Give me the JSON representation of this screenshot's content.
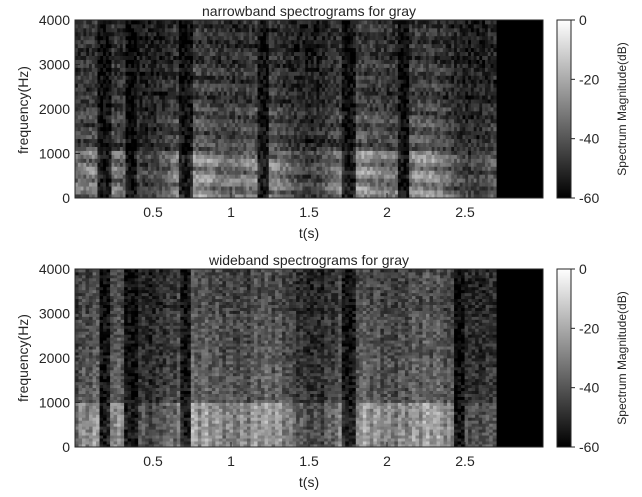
{
  "colors": {
    "axis": "#262626",
    "background": "#ffffff",
    "colormap": "gray"
  },
  "chart_data": [
    {
      "type": "heatmap",
      "name": "narrowband",
      "title": "narrowband spectrograms for gray",
      "xlabel": "t(s)",
      "ylabel": "frequency(Hz)",
      "xlim": [
        0,
        3.0
      ],
      "ylim": [
        0,
        4000
      ],
      "xticks": [
        0.5,
        1,
        1.5,
        2,
        2.5
      ],
      "xticklabels": [
        "0.5",
        "1",
        "1.5",
        "2",
        "2.5"
      ],
      "yticks": [
        0,
        1000,
        2000,
        3000,
        4000
      ],
      "yticklabels": [
        "0",
        "1000",
        "2000",
        "3000",
        "4000"
      ],
      "colorbar": {
        "label": "Spectrum Magnitude(dB)",
        "range": [
          -60,
          0
        ],
        "ticks": [
          0,
          -20,
          -40,
          -60
        ],
        "ticklabels": [
          "0",
          "-20",
          "-40",
          "-60"
        ]
      },
      "signal_end_s": 2.7,
      "silence_gaps_s": [
        0.18,
        0.35,
        0.7,
        1.2,
        1.75,
        2.1
      ],
      "bands": [
        {
          "lo": 0,
          "hi": 1000,
          "level": 0.75
        },
        {
          "lo": 1000,
          "hi": 2000,
          "level": 0.45
        },
        {
          "lo": 2000,
          "hi": 3000,
          "level": 0.35
        },
        {
          "lo": 3000,
          "hi": 4000,
          "level": 0.3
        }
      ]
    },
    {
      "type": "heatmap",
      "name": "wideband",
      "title": "wideband spectrograms for gray",
      "xlabel": "t(s)",
      "ylabel": "frequency(Hz)",
      "xlim": [
        0,
        3.0
      ],
      "ylim": [
        0,
        4000
      ],
      "xticks": [
        0.5,
        1,
        1.5,
        2,
        2.5
      ],
      "xticklabels": [
        "0.5",
        "1",
        "1.5",
        "2",
        "2.5"
      ],
      "yticks": [
        0,
        1000,
        2000,
        3000,
        4000
      ],
      "yticklabels": [
        "0",
        "1000",
        "2000",
        "3000",
        "4000"
      ],
      "colorbar": {
        "label": "Spectrum Magnitude(dB)",
        "range": [
          -60,
          0
        ],
        "ticks": [
          0,
          -20,
          -40,
          -60
        ],
        "ticklabels": [
          "0",
          "-20",
          "-40",
          "-60"
        ]
      },
      "signal_end_s": 2.7,
      "silence_gaps_s": [
        0.18,
        0.35,
        0.7,
        1.75,
        2.45
      ],
      "bands": [
        {
          "lo": 0,
          "hi": 1000,
          "level": 0.8
        },
        {
          "lo": 1000,
          "hi": 2000,
          "level": 0.5
        },
        {
          "lo": 2000,
          "hi": 3000,
          "level": 0.45
        },
        {
          "lo": 3000,
          "hi": 4000,
          "level": 0.4
        }
      ]
    }
  ]
}
